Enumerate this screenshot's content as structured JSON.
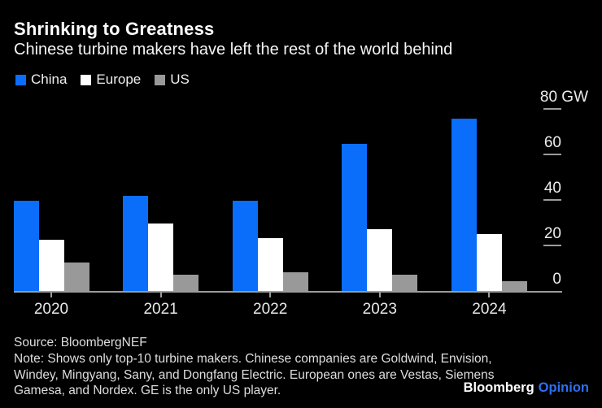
{
  "header": {
    "title": "Shrinking to Greatness",
    "subtitle": "Chinese turbine makers have left the rest of the world behind"
  },
  "legend": [
    {
      "label": "China",
      "color": "#0a6efa"
    },
    {
      "label": "Europe",
      "color": "#ffffff"
    },
    {
      "label": "US",
      "color": "#999999"
    }
  ],
  "chart_data": {
    "type": "bar",
    "title": "Shrinking to Greatness",
    "subtitle": "Chinese turbine makers have left the rest of the world behind",
    "categories": [
      "2020",
      "2021",
      "2022",
      "2023",
      "2024"
    ],
    "series": [
      {
        "name": "China",
        "color": "#0a6efa",
        "values": [
          40,
          42,
          40,
          65,
          76
        ]
      },
      {
        "name": "Europe",
        "color": "#ffffff",
        "values": [
          23,
          30,
          23.5,
          27.5,
          25.5
        ]
      },
      {
        "name": "US",
        "color": "#999999",
        "values": [
          13,
          7.5,
          8.5,
          7.5,
          4.5
        ]
      }
    ],
    "unit": "GW",
    "ylim": [
      0,
      80
    ],
    "yticks": [
      0,
      20,
      40,
      60,
      80
    ],
    "ytick_labels": [
      "0",
      "20",
      "40",
      "60",
      "80 GW"
    ],
    "xlabel": "",
    "ylabel": "",
    "grid": false,
    "legend_position": "top-left",
    "axis_side": "right"
  },
  "footer": {
    "source": "Source: BloombergNEF",
    "note": "Note: Shows only top-10 turbine makers. Chinese companies are Goldwind, Envision, Windey, Mingyang, Sany, and Dongfang Electric. European ones are Vestas, Siemens Gamesa, and Nordex. GE is the only US player.",
    "brand": "Bloomberg",
    "brand_suffix": "Opinion"
  },
  "colors": {
    "background": "#000000",
    "china_blue": "#0a6efa",
    "europe_white": "#ffffff",
    "us_gray": "#999999",
    "axis_gray": "#9b9b9b",
    "text_white": "#ffffff",
    "footer_gray": "#dedede",
    "opinion_blue": "#2e6ff2"
  }
}
